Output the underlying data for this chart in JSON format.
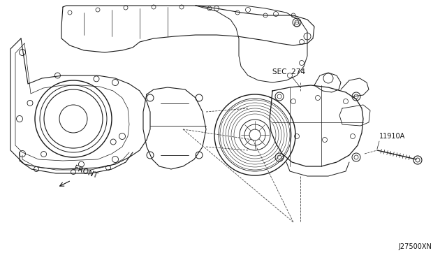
{
  "bg_color": "#ffffff",
  "line_color": "#1a1a1a",
  "dashed_color": "#444444",
  "text_color": "#111111",
  "label_sec274": "SEC. 274",
  "label_11910a": "11910A",
  "label_front": "FRONT",
  "label_j27500xn": "J27500XN",
  "fig_width": 6.4,
  "fig_height": 3.72,
  "dpi": 100,
  "border_color": "#cccccc"
}
